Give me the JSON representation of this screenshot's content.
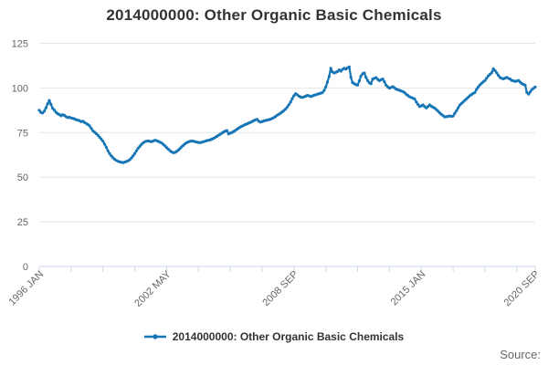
{
  "chart_data": {
    "type": "line",
    "title": "2014000000: Other Organic Basic Chemicals",
    "grid": true,
    "legend_position": "bottom",
    "colors": {
      "series": "#1776b5",
      "gridline": "#e6e6e6",
      "axis_line": "#ccd6eb",
      "tick_label": "#666666",
      "title_text": "#333333"
    },
    "y_axis": {
      "ticks": [
        0,
        25,
        50,
        75,
        100,
        125
      ],
      "range": [
        0,
        125
      ]
    },
    "x_axis": {
      "range_months": [
        0,
        296
      ],
      "minor_tick_months": [
        0,
        19,
        38,
        57,
        76,
        95,
        114,
        133,
        152,
        171,
        190,
        209,
        228,
        247,
        266,
        285,
        296
      ],
      "labels": [
        {
          "month": 0,
          "label": "1996 JAN"
        },
        {
          "month": 76,
          "label": "2002 MAY"
        },
        {
          "month": 152,
          "label": "2008 SEP"
        },
        {
          "month": 228,
          "label": "2015 JAN"
        },
        {
          "month": 296,
          "label": "2020 SEP"
        }
      ]
    },
    "series": [
      {
        "name": "2014000000: Other Organic Basic Chemicals",
        "color": "#1776b5",
        "start_label": "1996 JAN",
        "end_label": "2020 SEP",
        "frequency": "monthly",
        "values": [
          87.5,
          86.3,
          86.0,
          87.0,
          88.8,
          91.2,
          93.0,
          90.8,
          88.6,
          87.6,
          86.4,
          85.6,
          85.1,
          84.4,
          85.0,
          84.6,
          83.9,
          83.4,
          83.6,
          83.2,
          83.0,
          82.7,
          82.2,
          82.0,
          81.7,
          81.1,
          81.4,
          80.7,
          80.1,
          79.5,
          78.8,
          77.4,
          76.0,
          75.2,
          74.4,
          73.5,
          72.4,
          71.3,
          70.2,
          68.5,
          66.8,
          64.8,
          63.2,
          61.9,
          60.9,
          60.0,
          59.4,
          58.9,
          58.6,
          58.4,
          58.2,
          58.5,
          58.8,
          59.2,
          59.8,
          60.8,
          61.9,
          63.3,
          64.8,
          66.2,
          67.3,
          68.4,
          69.2,
          69.9,
          70.2,
          70.3,
          70.1,
          69.9,
          70.3,
          70.7,
          70.5,
          70.1,
          69.6,
          69.2,
          68.4,
          67.6,
          66.6,
          65.7,
          64.9,
          64.2,
          63.7,
          63.9,
          64.4,
          65.2,
          66.1,
          67.0,
          67.9,
          68.7,
          69.3,
          69.8,
          70.1,
          70.3,
          70.2,
          69.9,
          69.7,
          69.5,
          69.4,
          69.6,
          69.9,
          70.2,
          70.5,
          70.7,
          70.9,
          71.3,
          71.8,
          72.3,
          72.9,
          73.5,
          74.1,
          74.7,
          75.3,
          75.8,
          76.1,
          74.3,
          74.7,
          75.1,
          75.6,
          76.2,
          76.9,
          77.5,
          78.1,
          78.6,
          79.1,
          79.5,
          79.9,
          80.3,
          80.7,
          81.2,
          81.7,
          82.1,
          82.4,
          81.4,
          80.9,
          81.2,
          81.5,
          81.8,
          82.0,
          82.2,
          82.5,
          82.9,
          83.4,
          84.0,
          84.7,
          85.3,
          85.9,
          86.6,
          87.3,
          88.2,
          89.3,
          90.6,
          92.2,
          94.0,
          95.6,
          96.8,
          96.2,
          95.4,
          94.9,
          94.7,
          95.0,
          95.4,
          95.8,
          95.6,
          95.2,
          95.5,
          95.9,
          96.2,
          96.5,
          96.8,
          97.1,
          97.4,
          98.6,
          100.5,
          103.3,
          106.5,
          111.0,
          109.0,
          108.4,
          108.8,
          109.2,
          110.1,
          109.4,
          110.4,
          111.0,
          110.6,
          111.3,
          111.8,
          106.0,
          103.0,
          102.4,
          101.9,
          101.6,
          104.0,
          106.7,
          108.0,
          108.4,
          106.0,
          104.1,
          102.9,
          102.4,
          105.0,
          105.4,
          105.8,
          104.8,
          104.1,
          104.6,
          105.0,
          103.5,
          101.6,
          100.6,
          99.9,
          100.3,
          100.7,
          100.1,
          99.4,
          99.0,
          98.7,
          98.3,
          98.0,
          97.4,
          96.5,
          95.8,
          95.1,
          94.7,
          94.2,
          93.9,
          92.2,
          90.8,
          89.6,
          90.0,
          90.5,
          89.6,
          88.8,
          89.6,
          90.5,
          89.8,
          89.2,
          88.7,
          87.9,
          87.0,
          86.1,
          85.2,
          84.5,
          83.8,
          83.9,
          84.1,
          84.3,
          84.1,
          84.3,
          85.8,
          87.2,
          88.8,
          90.4,
          91.3,
          92.2,
          93.1,
          93.9,
          94.8,
          95.7,
          96.3,
          97.0,
          97.5,
          99.2,
          100.5,
          101.7,
          102.6,
          103.4,
          104.2,
          105.5,
          106.8,
          107.6,
          108.5,
          110.8,
          109.7,
          108.5,
          107.1,
          105.9,
          105.4,
          105.1,
          105.5,
          105.9,
          105.4,
          105.0,
          104.3,
          104.0,
          103.7,
          103.9,
          104.2,
          103.3,
          102.5,
          102.0,
          101.6,
          97.5,
          96.6,
          97.8,
          99.1,
          99.8,
          100.5
        ]
      }
    ]
  },
  "footer": {
    "source_label": "Source:"
  }
}
